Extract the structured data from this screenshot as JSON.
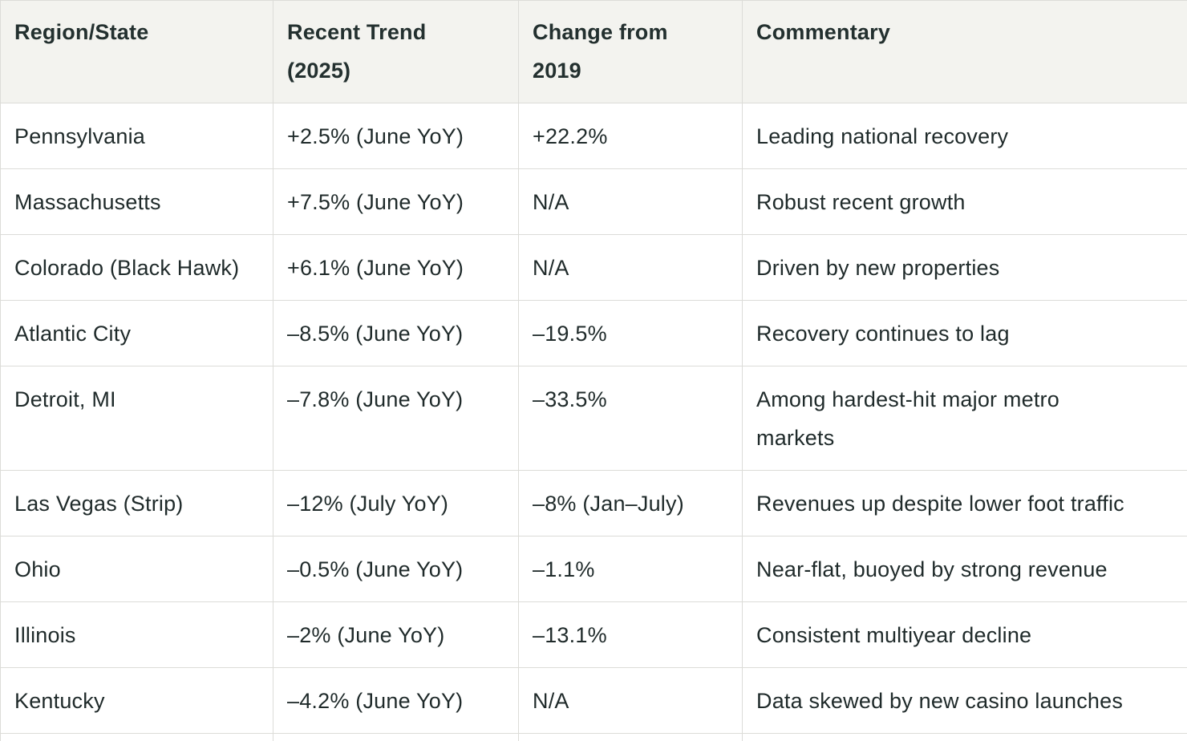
{
  "table": {
    "headers": [
      "Region/State",
      "Recent Trend\n(2025)",
      "Change from\n2019",
      "Commentary"
    ],
    "rows": [
      [
        "Pennsylvania",
        "+2.5% (June YoY)",
        "+22.2%",
        "Leading national recovery"
      ],
      [
        "Massachusetts",
        "+7.5% (June YoY)",
        "N/A",
        "Robust recent growth"
      ],
      [
        "Colorado (Black Hawk)",
        "+6.1% (June YoY)",
        "N/A",
        "Driven by new properties"
      ],
      [
        "Atlantic City",
        "–8.5% (June YoY)",
        "–19.5%",
        "Recovery continues to lag"
      ],
      [
        "Detroit, MI",
        "–7.8% (June YoY)",
        "–33.5%",
        "Among hardest-hit major metro markets"
      ],
      [
        "Las Vegas (Strip)",
        "–12% (July YoY)",
        "–8% (Jan–July)",
        "Revenues up despite lower foot traffic"
      ],
      [
        "Ohio",
        "–0.5% (June YoY)",
        "–1.1%",
        "Near-flat, buoyed by strong revenue"
      ],
      [
        "Illinois",
        "–2% (June YoY)",
        "–13.1%",
        "Consistent multiyear decline"
      ],
      [
        "Kentucky",
        "–4.2% (June YoY)",
        "N/A",
        "Data skewed by new casino launches"
      ]
    ]
  }
}
